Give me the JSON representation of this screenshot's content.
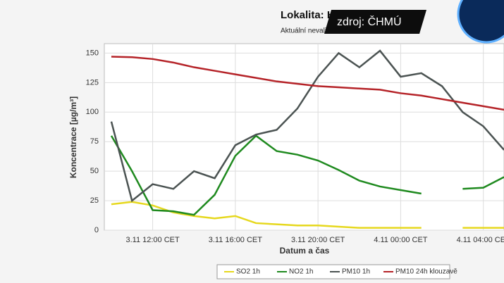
{
  "header": {
    "location": "Lokalita: Havířov",
    "note": "Aktuální nevalidovaná data",
    "source": "zdroj: ČHMÚ"
  },
  "chart_data": {
    "type": "line",
    "y_label": "Koncentrace [µg/m³]",
    "x_label": "Datum a čas",
    "x": [
      10,
      11,
      12,
      13,
      14,
      15,
      16,
      17,
      18,
      19,
      20,
      21,
      22,
      23,
      24,
      25,
      26,
      27,
      28,
      29
    ],
    "xlim": [
      9.66,
      29
    ],
    "xticks": [
      {
        "value": 12,
        "label": "3.11 12:00 CET"
      },
      {
        "value": 16,
        "label": "3.11 16:00 CET"
      },
      {
        "value": 20,
        "label": "3.11 20:00 CET"
      },
      {
        "value": 24,
        "label": "4.11 00:00 CET"
      },
      {
        "value": 28,
        "label": "4.11 04:00 CET"
      }
    ],
    "ylim": [
      0,
      158
    ],
    "yticks": [
      0,
      25,
      50,
      75,
      100,
      125,
      150
    ],
    "grid": true,
    "series": [
      {
        "name": "SO2 1h",
        "color": "#e6d81e",
        "values": [
          22,
          24,
          21,
          15,
          12,
          10,
          12,
          6,
          5,
          4,
          4,
          3,
          2,
          2,
          2,
          2,
          null,
          2,
          2,
          2
        ]
      },
      {
        "name": "NO2 1h",
        "color": "#1f8a1f",
        "values": [
          80,
          50,
          17,
          16,
          13,
          30,
          63,
          80,
          67,
          64,
          59,
          51,
          42,
          37,
          34,
          31,
          null,
          35,
          36,
          45
        ]
      },
      {
        "name": "PM10 1h",
        "color": "#4b5352",
        "values": [
          92,
          25,
          39,
          35,
          50,
          44,
          72,
          81,
          85,
          103,
          130,
          150,
          138,
          152,
          130,
          133,
          122,
          100,
          88,
          68
        ]
      },
      {
        "name": "PM10 24h klouzavě",
        "color": "#b52328",
        "values": [
          147,
          146.5,
          145,
          142,
          138,
          135,
          132,
          129,
          126,
          124,
          122,
          121,
          120,
          119,
          116,
          114,
          111,
          108,
          105,
          102
        ]
      }
    ]
  }
}
